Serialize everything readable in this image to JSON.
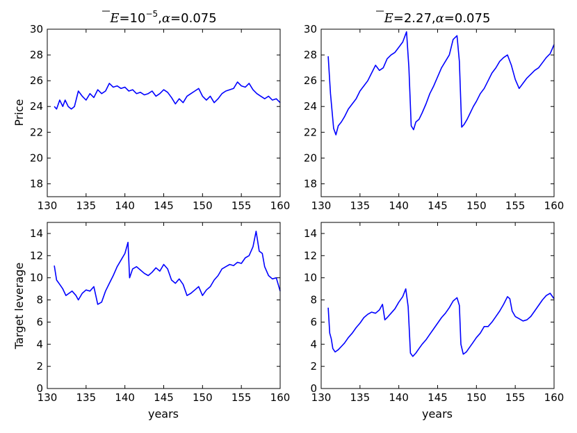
{
  "chart_data": [
    {
      "type": "line",
      "title_parts": {
        "var": "E",
        "eq1": "=",
        "mant": "10",
        "exp": "−5",
        "sep": ",",
        "alpha": "α",
        "eq2": "=",
        "val": "0.075"
      },
      "xlabel": "",
      "ylabel": "Price",
      "xlim": [
        130,
        160
      ],
      "ylim": [
        17,
        30
      ],
      "xticks": [
        "130",
        "135",
        "140",
        "145",
        "150",
        "155",
        "160"
      ],
      "yticks": [
        "18",
        "20",
        "22",
        "24",
        "26",
        "28",
        "30"
      ],
      "series": [
        {
          "color": "#0000ff",
          "x": [
            130.9,
            131.2,
            131.6,
            132.0,
            132.3,
            132.7,
            133.1,
            133.5,
            134.0,
            134.5,
            135.0,
            135.5,
            136.0,
            136.5,
            137.0,
            137.5,
            138.0,
            138.5,
            139.0,
            139.5,
            140.0,
            140.5,
            141.0,
            141.5,
            142.0,
            142.5,
            143.0,
            143.5,
            144.0,
            144.5,
            145.0,
            145.5,
            146.0,
            146.5,
            147.0,
            147.5,
            148.0,
            148.5,
            149.0,
            149.5,
            150.0,
            150.5,
            151.0,
            151.5,
            152.0,
            152.5,
            153.0,
            153.5,
            154.0,
            154.5,
            155.0,
            155.5,
            156.0,
            156.5,
            157.0,
            157.5,
            158.0,
            158.5,
            159.0,
            159.5,
            160.0
          ],
          "y": [
            24.0,
            23.8,
            24.5,
            24.0,
            24.5,
            24.0,
            23.8,
            24.0,
            25.2,
            24.8,
            24.5,
            25.0,
            24.7,
            25.3,
            25.0,
            25.2,
            25.8,
            25.5,
            25.6,
            25.4,
            25.5,
            25.2,
            25.3,
            25.0,
            25.1,
            24.9,
            25.0,
            25.2,
            24.8,
            25.0,
            25.3,
            25.1,
            24.7,
            24.2,
            24.6,
            24.3,
            24.8,
            25.0,
            25.2,
            25.4,
            24.8,
            24.5,
            24.8,
            24.3,
            24.6,
            25.0,
            25.2,
            25.3,
            25.4,
            25.9,
            25.6,
            25.5,
            25.8,
            25.3,
            25.0,
            24.8,
            24.6,
            24.8,
            24.5,
            24.6,
            24.3
          ]
        }
      ]
    },
    {
      "type": "line",
      "title_parts": {
        "var": "E",
        "eq1": "=",
        "val1": "2.27",
        "sep": ",",
        "alpha": "α",
        "eq2": "=",
        "val": "0.075"
      },
      "xlabel": "",
      "ylabel": "",
      "xlim": [
        130,
        160
      ],
      "ylim": [
        17,
        30
      ],
      "xticks": [
        "130",
        "135",
        "140",
        "145",
        "150",
        "155",
        "160"
      ],
      "yticks": [
        "18",
        "20",
        "22",
        "24",
        "26",
        "28",
        "30"
      ],
      "series": [
        {
          "color": "#0000ff",
          "x": [
            130.9,
            131.2,
            131.6,
            131.9,
            132.2,
            132.6,
            133.0,
            133.5,
            134.0,
            134.5,
            135.0,
            135.5,
            136.0,
            136.5,
            137.0,
            137.5,
            138.0,
            138.5,
            139.0,
            139.5,
            140.0,
            140.5,
            141.0,
            141.3,
            141.6,
            141.9,
            142.2,
            142.6,
            143.0,
            143.5,
            144.0,
            144.5,
            145.0,
            145.5,
            146.0,
            146.5,
            147.0,
            147.5,
            147.8,
            148.1,
            148.4,
            148.8,
            149.2,
            149.6,
            150.0,
            150.5,
            151.0,
            151.5,
            152.0,
            152.5,
            153.0,
            153.5,
            154.0,
            154.5,
            155.0,
            155.5,
            156.0,
            156.5,
            157.0,
            157.5,
            158.0,
            158.5,
            159.0,
            159.5,
            160.0
          ],
          "y": [
            27.9,
            25.0,
            22.3,
            21.8,
            22.5,
            22.8,
            23.2,
            23.8,
            24.2,
            24.6,
            25.2,
            25.6,
            26.0,
            26.6,
            27.2,
            26.8,
            27.0,
            27.7,
            28.0,
            28.2,
            28.6,
            29.0,
            29.8,
            27.0,
            22.5,
            22.2,
            22.8,
            23.0,
            23.5,
            24.2,
            25.0,
            25.6,
            26.3,
            27.0,
            27.5,
            28.0,
            29.2,
            29.5,
            27.5,
            22.4,
            22.6,
            23.0,
            23.5,
            24.0,
            24.4,
            25.0,
            25.4,
            26.0,
            26.6,
            27.0,
            27.5,
            27.8,
            28.0,
            27.2,
            26.1,
            25.4,
            25.8,
            26.2,
            26.5,
            26.8,
            27.0,
            27.4,
            27.8,
            28.1,
            28.8
          ]
        }
      ]
    },
    {
      "type": "line",
      "title_parts": {},
      "xlabel": "years",
      "ylabel": "Target leverage",
      "xlim": [
        130,
        160
      ],
      "ylim": [
        0,
        15
      ],
      "xticks": [
        "130",
        "135",
        "140",
        "145",
        "150",
        "155",
        "160"
      ],
      "yticks": [
        "0",
        "2",
        "4",
        "6",
        "8",
        "10",
        "12",
        "14"
      ],
      "series": [
        {
          "color": "#0000ff",
          "x": [
            130.9,
            131.2,
            131.6,
            132.0,
            132.4,
            132.8,
            133.2,
            133.7,
            134.0,
            134.5,
            135.0,
            135.5,
            136.0,
            136.5,
            137.0,
            137.5,
            138.0,
            138.5,
            139.0,
            139.5,
            140.0,
            140.4,
            140.6,
            141.0,
            141.5,
            142.0,
            142.5,
            143.0,
            143.5,
            144.0,
            144.5,
            145.0,
            145.5,
            146.0,
            146.5,
            147.0,
            147.5,
            148.0,
            148.5,
            149.0,
            149.5,
            150.0,
            150.5,
            151.0,
            151.5,
            152.0,
            152.5,
            153.0,
            153.5,
            154.0,
            154.5,
            155.0,
            155.5,
            156.0,
            156.5,
            156.9,
            157.3,
            157.7,
            158.0,
            158.5,
            159.0,
            159.5,
            160.0
          ],
          "y": [
            11.1,
            9.8,
            9.4,
            9.0,
            8.4,
            8.6,
            8.8,
            8.4,
            8.0,
            8.6,
            8.9,
            8.8,
            9.2,
            7.6,
            7.8,
            8.8,
            9.5,
            10.2,
            11.0,
            11.6,
            12.2,
            13.2,
            10.0,
            10.8,
            11.0,
            10.7,
            10.4,
            10.2,
            10.5,
            10.9,
            10.6,
            11.2,
            10.8,
            9.8,
            9.5,
            9.9,
            9.4,
            8.4,
            8.6,
            8.9,
            9.2,
            8.4,
            8.9,
            9.2,
            9.8,
            10.2,
            10.8,
            11.0,
            11.2,
            11.1,
            11.4,
            11.3,
            11.8,
            12.0,
            12.8,
            14.2,
            12.4,
            12.2,
            11.0,
            10.2,
            9.9,
            10.0,
            8.8
          ]
        }
      ]
    },
    {
      "type": "line",
      "title_parts": {},
      "xlabel": "years",
      "ylabel": "",
      "xlim": [
        130,
        160
      ],
      "ylim": [
        0,
        15
      ],
      "xticks": [
        "130",
        "135",
        "140",
        "145",
        "150",
        "155",
        "160"
      ],
      "yticks": [
        "0",
        "2",
        "4",
        "6",
        "8",
        "10",
        "12",
        "14"
      ],
      "series": [
        {
          "color": "#0000ff",
          "x": [
            130.9,
            131.1,
            131.3,
            131.5,
            131.8,
            132.2,
            132.6,
            133.0,
            133.5,
            134.0,
            134.5,
            135.0,
            135.5,
            136.0,
            136.5,
            137.0,
            137.5,
            137.9,
            138.2,
            138.5,
            139.0,
            139.5,
            140.0,
            140.5,
            140.9,
            141.2,
            141.5,
            141.8,
            142.2,
            142.6,
            143.0,
            143.5,
            144.0,
            144.5,
            145.0,
            145.5,
            146.0,
            146.5,
            147.0,
            147.5,
            147.8,
            148.0,
            148.3,
            148.7,
            149.0,
            149.5,
            150.0,
            150.5,
            151.0,
            151.5,
            152.0,
            152.5,
            153.0,
            153.5,
            154.0,
            154.3,
            154.6,
            155.0,
            155.5,
            156.0,
            156.5,
            157.0,
            157.5,
            158.0,
            158.5,
            159.0,
            159.5,
            160.0
          ],
          "y": [
            7.3,
            5.0,
            4.5,
            3.6,
            3.3,
            3.5,
            3.8,
            4.1,
            4.6,
            5.0,
            5.5,
            5.9,
            6.4,
            6.7,
            6.9,
            6.8,
            7.1,
            7.6,
            6.2,
            6.4,
            6.8,
            7.2,
            7.8,
            8.3,
            9.0,
            7.4,
            3.2,
            2.9,
            3.2,
            3.6,
            4.0,
            4.4,
            4.9,
            5.4,
            5.9,
            6.4,
            6.8,
            7.3,
            7.9,
            8.2,
            7.5,
            4.0,
            3.1,
            3.3,
            3.6,
            4.1,
            4.6,
            5.0,
            5.6,
            5.6,
            6.0,
            6.5,
            7.0,
            7.6,
            8.3,
            8.1,
            7.0,
            6.5,
            6.3,
            6.1,
            6.2,
            6.5,
            7.0,
            7.5,
            8.0,
            8.4,
            8.6,
            8.1
          ]
        }
      ]
    }
  ]
}
